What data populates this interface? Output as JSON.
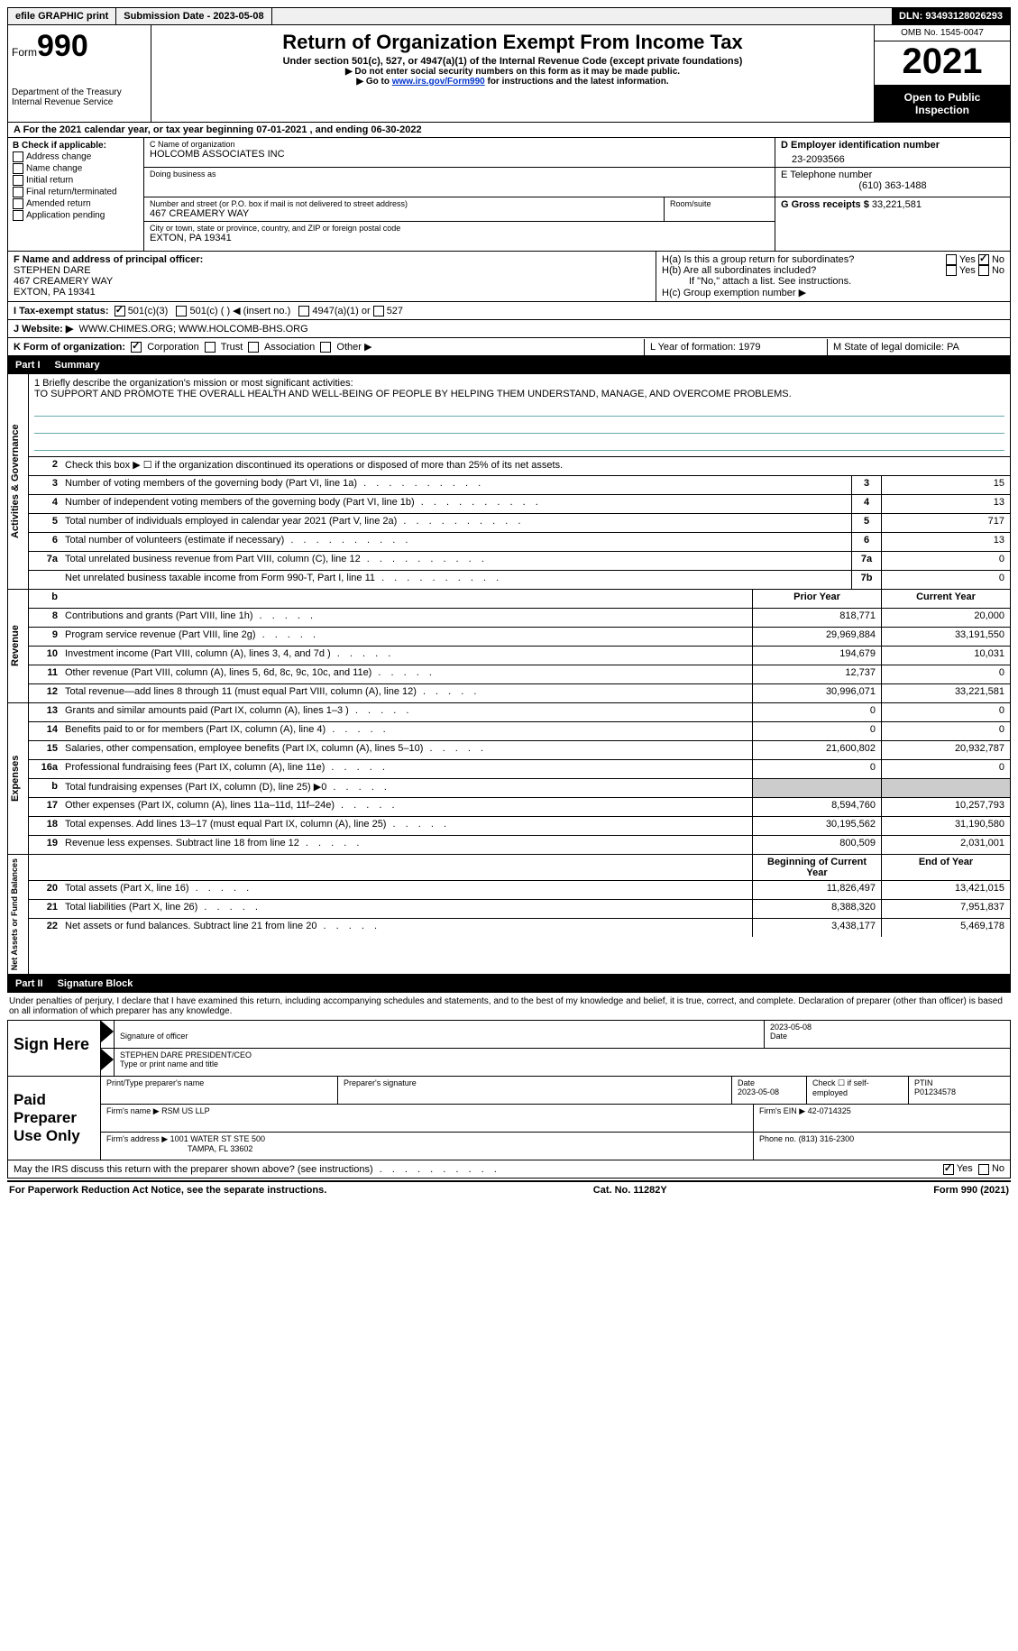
{
  "topbar": {
    "efile": "efile GRAPHIC print",
    "submission": "Submission Date - 2023-05-08",
    "dln": "DLN: 93493128026293"
  },
  "header": {
    "form_prefix": "Form",
    "form_num": "990",
    "dept1": "Department of the Treasury",
    "dept2": "Internal Revenue Service",
    "title": "Return of Organization Exempt From Income Tax",
    "subtitle": "Under section 501(c), 527, or 4947(a)(1) of the Internal Revenue Code (except private foundations)",
    "note1": "▶ Do not enter social security numbers on this form as it may be made public.",
    "note2_pre": "▶ Go to ",
    "note2_link": "www.irs.gov/Form990",
    "note2_post": " for instructions and the latest information.",
    "omb": "OMB No. 1545-0047",
    "year": "2021",
    "inspection": "Open to Public Inspection"
  },
  "rowA": "A For the 2021 calendar year, or tax year beginning 07-01-2021   , and ending 06-30-2022",
  "sectionB": {
    "label": "B Check if applicable:",
    "items": [
      "Address change",
      "Name change",
      "Initial return",
      "Final return/terminated",
      "Amended return",
      "Application pending"
    ]
  },
  "sectionC": {
    "name_label": "C Name of organization",
    "name": "HOLCOMB ASSOCIATES INC",
    "dba_label": "Doing business as",
    "addr_label": "Number and street (or P.O. box if mail is not delivered to street address)",
    "room_label": "Room/suite",
    "addr": "467 CREAMERY WAY",
    "city_label": "City or town, state or province, country, and ZIP or foreign postal code",
    "city": "EXTON, PA  19341"
  },
  "sectionD": {
    "ein_label": "D Employer identification number",
    "ein": "23-2093566",
    "tel_label": "E Telephone number",
    "tel": "(610) 363-1488",
    "gross_label": "G Gross receipts $",
    "gross": "33,221,581"
  },
  "sectionF": {
    "label": "F  Name and address of principal officer:",
    "name": "STEPHEN DARE",
    "addr1": "467 CREAMERY WAY",
    "addr2": "EXTON, PA  19341"
  },
  "sectionH": {
    "a": "H(a)  Is this a group return for subordinates?",
    "b": "H(b)  Are all subordinates included?",
    "b_note": "If \"No,\" attach a list. See instructions.",
    "c": "H(c)  Group exemption number ▶",
    "yes": "Yes",
    "no": "No"
  },
  "rowI": {
    "label": "I    Tax-exempt status:",
    "o1": "501(c)(3)",
    "o2": "501(c) (  ) ◀ (insert no.)",
    "o3": "4947(a)(1) or",
    "o4": "527"
  },
  "rowJ": {
    "label": "J   Website: ▶",
    "val": "WWW.CHIMES.ORG; WWW.HOLCOMB-BHS.ORG"
  },
  "rowK": {
    "label": "K Form of organization:",
    "o1": "Corporation",
    "o2": "Trust",
    "o3": "Association",
    "o4": "Other ▶",
    "L": "L Year of formation: 1979",
    "M": "M State of legal domicile: PA"
  },
  "part1": {
    "label": "Part I",
    "title": "Summary"
  },
  "mission": {
    "q": "1  Briefly describe the organization's mission or most significant activities:",
    "text": "TO SUPPORT AND PROMOTE THE OVERALL HEALTH AND WELL-BEING OF PEOPLE BY HELPING THEM UNDERSTAND, MANAGE, AND OVERCOME PROBLEMS."
  },
  "line2": "Check this box ▶ ☐  if the organization discontinued its operations or disposed of more than 25% of its net assets.",
  "govRows": [
    {
      "n": "3",
      "d": "Number of voting members of the governing body (Part VI, line 1a)",
      "b": "3",
      "v": "15"
    },
    {
      "n": "4",
      "d": "Number of independent voting members of the governing body (Part VI, line 1b)",
      "b": "4",
      "v": "13"
    },
    {
      "n": "5",
      "d": "Total number of individuals employed in calendar year 2021 (Part V, line 2a)",
      "b": "5",
      "v": "717"
    },
    {
      "n": "6",
      "d": "Total number of volunteers (estimate if necessary)",
      "b": "6",
      "v": "13"
    },
    {
      "n": "7a",
      "d": "Total unrelated business revenue from Part VIII, column (C), line 12",
      "b": "7a",
      "v": "0"
    },
    {
      "n": "",
      "d": "Net unrelated business taxable income from Form 990-T, Part I, line 11",
      "b": "7b",
      "v": "0"
    }
  ],
  "colHdr": {
    "prior": "Prior Year",
    "current": "Current Year"
  },
  "revenue": [
    {
      "n": "8",
      "d": "Contributions and grants (Part VIII, line 1h)",
      "p": "818,771",
      "c": "20,000"
    },
    {
      "n": "9",
      "d": "Program service revenue (Part VIII, line 2g)",
      "p": "29,969,884",
      "c": "33,191,550"
    },
    {
      "n": "10",
      "d": "Investment income (Part VIII, column (A), lines 3, 4, and 7d )",
      "p": "194,679",
      "c": "10,031"
    },
    {
      "n": "11",
      "d": "Other revenue (Part VIII, column (A), lines 5, 6d, 8c, 9c, 10c, and 11e)",
      "p": "12,737",
      "c": "0"
    },
    {
      "n": "12",
      "d": "Total revenue—add lines 8 through 11 (must equal Part VIII, column (A), line 12)",
      "p": "30,996,071",
      "c": "33,221,581"
    }
  ],
  "expenses": [
    {
      "n": "13",
      "d": "Grants and similar amounts paid (Part IX, column (A), lines 1–3 )",
      "p": "0",
      "c": "0"
    },
    {
      "n": "14",
      "d": "Benefits paid to or for members (Part IX, column (A), line 4)",
      "p": "0",
      "c": "0"
    },
    {
      "n": "15",
      "d": "Salaries, other compensation, employee benefits (Part IX, column (A), lines 5–10)",
      "p": "21,600,802",
      "c": "20,932,787"
    },
    {
      "n": "16a",
      "d": "Professional fundraising fees (Part IX, column (A), line 11e)",
      "p": "0",
      "c": "0"
    },
    {
      "n": "b",
      "d": "Total fundraising expenses (Part IX, column (D), line 25) ▶0",
      "p": "",
      "c": "",
      "shaded": true
    },
    {
      "n": "17",
      "d": "Other expenses (Part IX, column (A), lines 11a–11d, 11f–24e)",
      "p": "8,594,760",
      "c": "10,257,793"
    },
    {
      "n": "18",
      "d": "Total expenses. Add lines 13–17 (must equal Part IX, column (A), line 25)",
      "p": "30,195,562",
      "c": "31,190,580"
    },
    {
      "n": "19",
      "d": "Revenue less expenses. Subtract line 18 from line 12",
      "p": "800,509",
      "c": "2,031,001"
    }
  ],
  "netHdr": {
    "beg": "Beginning of Current Year",
    "end": "End of Year"
  },
  "net": [
    {
      "n": "20",
      "d": "Total assets (Part X, line 16)",
      "p": "11,826,497",
      "c": "13,421,015"
    },
    {
      "n": "21",
      "d": "Total liabilities (Part X, line 26)",
      "p": "8,388,320",
      "c": "7,951,837"
    },
    {
      "n": "22",
      "d": "Net assets or fund balances. Subtract line 21 from line 20",
      "p": "3,438,177",
      "c": "5,469,178"
    }
  ],
  "part2": {
    "label": "Part II",
    "title": "Signature Block"
  },
  "sigText": "Under penalties of perjury, I declare that I have examined this return, including accompanying schedules and statements, and to the best of my knowledge and belief, it is true, correct, and complete. Declaration of preparer (other than officer) is based on all information of which preparer has any knowledge.",
  "sign": {
    "label": "Sign Here",
    "sigof": "Signature of officer",
    "date": "2023-05-08",
    "dateL": "Date",
    "name": "STEPHEN DARE  PRESIDENT/CEO",
    "nameL": "Type or print name and title"
  },
  "paid": {
    "label": "Paid Preparer Use Only",
    "h1": "Print/Type preparer's name",
    "h2": "Preparer's signature",
    "h3": "Date",
    "h3v": "2023-05-08",
    "h4": "Check ☐ if self-employed",
    "h5": "PTIN",
    "h5v": "P01234578",
    "firmL": "Firm's name    ▶",
    "firm": "RSM US LLP",
    "einL": "Firm's EIN ▶",
    "ein": "42-0714325",
    "addrL": "Firm's address ▶",
    "addr1": "1001 WATER ST STE 500",
    "addr2": "TAMPA, FL  33602",
    "phoneL": "Phone no.",
    "phone": "(813) 316-2300"
  },
  "discuss": {
    "q": "May the IRS discuss this return with the preparer shown above? (see instructions)",
    "yes": "Yes",
    "no": "No"
  },
  "footer": {
    "left": "For Paperwork Reduction Act Notice, see the separate instructions.",
    "mid": "Cat. No. 11282Y",
    "right": "Form 990 (2021)"
  },
  "sideLabels": {
    "gov": "Activities & Governance",
    "rev": "Revenue",
    "exp": "Expenses",
    "net": "Net Assets or Fund Balances"
  }
}
